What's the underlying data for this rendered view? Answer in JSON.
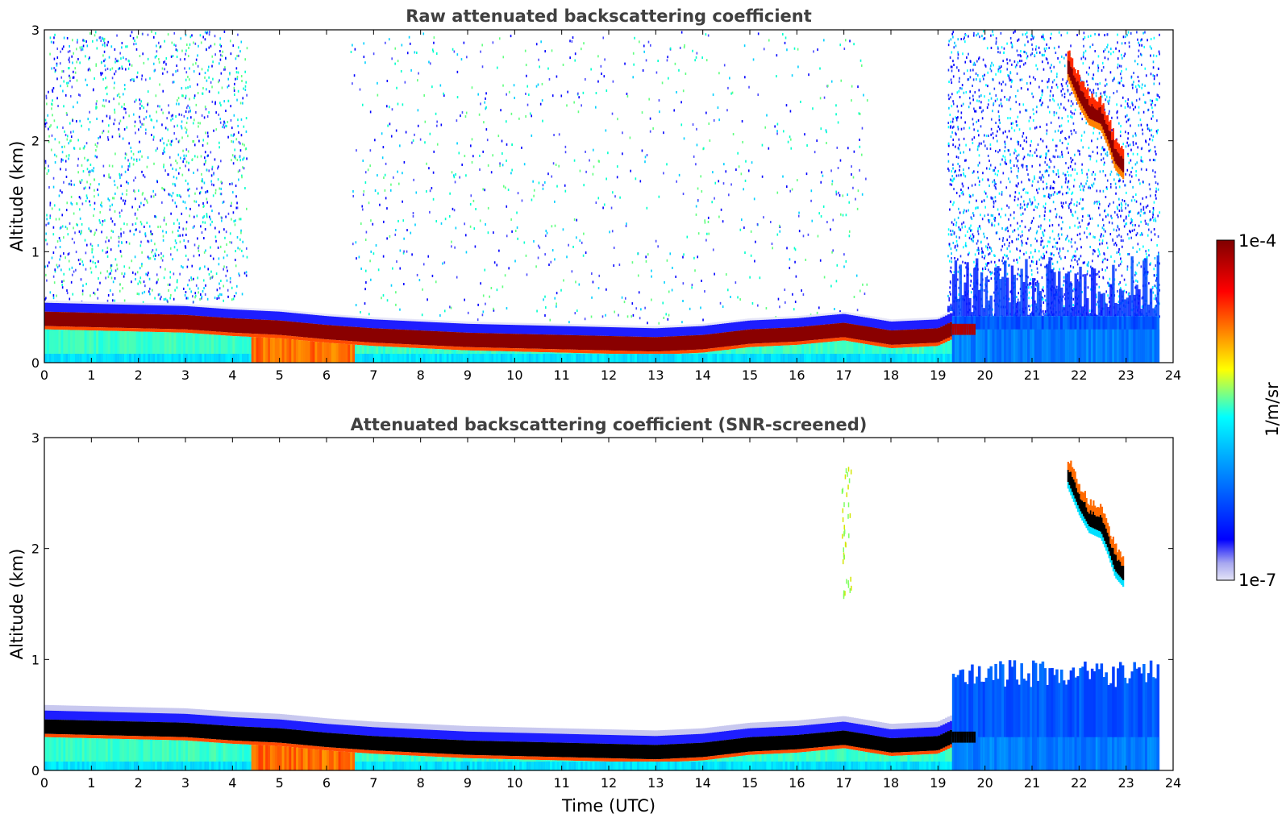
{
  "chart_data": [
    {
      "type": "heatmap",
      "title": "Raw attenuated backscattering coefficient",
      "xlabel": "",
      "ylabel": "Altitude (km)",
      "xlim": [
        0,
        24
      ],
      "ylim": [
        0,
        3
      ],
      "x_ticks": [
        "0",
        "1",
        "2",
        "3",
        "4",
        "5",
        "6",
        "7",
        "8",
        "9",
        "10",
        "11",
        "12",
        "13",
        "14",
        "15",
        "16",
        "17",
        "18",
        "19",
        "20",
        "21",
        "22",
        "23",
        "24"
      ],
      "y_ticks": [
        "0",
        "1",
        "2",
        "3"
      ],
      "colorscale": "jet, log10",
      "data_end_time": 23.7,
      "boundary_layer_top_km": {
        "time": [
          0,
          1,
          2,
          3,
          4,
          5,
          6,
          7,
          8,
          9,
          10,
          11,
          12,
          13,
          14,
          15,
          16,
          17,
          18,
          19,
          19.3
        ],
        "altitude": [
          0.42,
          0.41,
          0.4,
          0.39,
          0.36,
          0.34,
          0.3,
          0.27,
          0.25,
          0.23,
          0.22,
          0.21,
          0.2,
          0.19,
          0.21,
          0.26,
          0.28,
          0.32,
          0.25,
          0.27,
          0.33
        ]
      },
      "aerosol_plume": {
        "time": [
          4.4,
          6.6
        ],
        "altitude_top_km": 0.3,
        "level": "high"
      },
      "cloud_layer": {
        "time": [
          21.75,
          22.0,
          22.2,
          22.45,
          22.6,
          22.75,
          22.95
        ],
        "altitude": [
          2.6,
          2.35,
          2.2,
          2.15,
          2.0,
          1.8,
          1.7
        ]
      },
      "noise_regions": [
        {
          "time": [
            0,
            4.3
          ],
          "altitude": [
            0.55,
            3.0
          ],
          "level": "low"
        },
        {
          "time": [
            6.5,
            17.5
          ],
          "altitude": [
            0.35,
            3.0
          ],
          "level": "sparse"
        },
        {
          "time": [
            19.2,
            23.7
          ],
          "altitude": [
            0.4,
            3.0
          ],
          "level": "dense"
        }
      ]
    },
    {
      "type": "heatmap",
      "title": "Attenuated backscattering coefficient (SNR-screened)",
      "xlabel": "Time (UTC)",
      "ylabel": "Altitude (km)",
      "xlim": [
        0,
        24
      ],
      "ylim": [
        0,
        3
      ],
      "x_ticks": [
        "0",
        "1",
        "2",
        "3",
        "4",
        "5",
        "6",
        "7",
        "8",
        "9",
        "10",
        "11",
        "12",
        "13",
        "14",
        "15",
        "16",
        "17",
        "18",
        "19",
        "20",
        "21",
        "22",
        "23",
        "24"
      ],
      "y_ticks": [
        "0",
        "1",
        "2",
        "3"
      ],
      "colorscale": "jet, log10",
      "data_end_time": 23.7,
      "residual_layer": {
        "time": [
          19.2,
          23.7
        ],
        "altitude_top_km": 1.0
      },
      "aerosol_streak": {
        "time": [
          16.95,
          17.15
        ],
        "altitude": [
          1.55,
          2.75
        ]
      }
    }
  ],
  "colorbar": {
    "label": "1/m/sr",
    "min_label": "1e-7",
    "max_label": "1e-4",
    "min": 1e-07,
    "max": 0.0001
  }
}
